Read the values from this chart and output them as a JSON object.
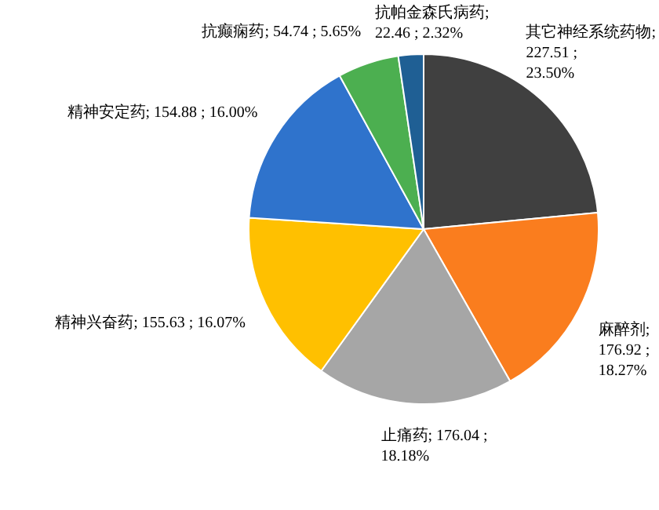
{
  "chart_data": {
    "type": "pie",
    "categories": [
      "其它神经系统药物",
      "麻醉剂",
      "止痛药",
      "精神兴奋药",
      "精神安定药",
      "抗癫痫药",
      "抗帕金森氏病药"
    ],
    "values": [
      227.51,
      176.92,
      176.04,
      155.63,
      154.88,
      54.74,
      22.46
    ],
    "colors": [
      "#404040",
      "#fa7d1e",
      "#a6a6a6",
      "#ffc000",
      "#2f73cc",
      "#4caf50",
      "#1f5f94"
    ],
    "value_labels": [
      "; 227.51 ; 23.50%",
      "; 176.92 ; 18.27%",
      "; 176.04 ; 18.18%",
      "; 155.63 ; 16.07%",
      "; 154.88 ; 16.00%",
      "; 54.74 ; 5.65%",
      "; 22.46 ; 2.32%"
    ],
    "legend": false
  }
}
